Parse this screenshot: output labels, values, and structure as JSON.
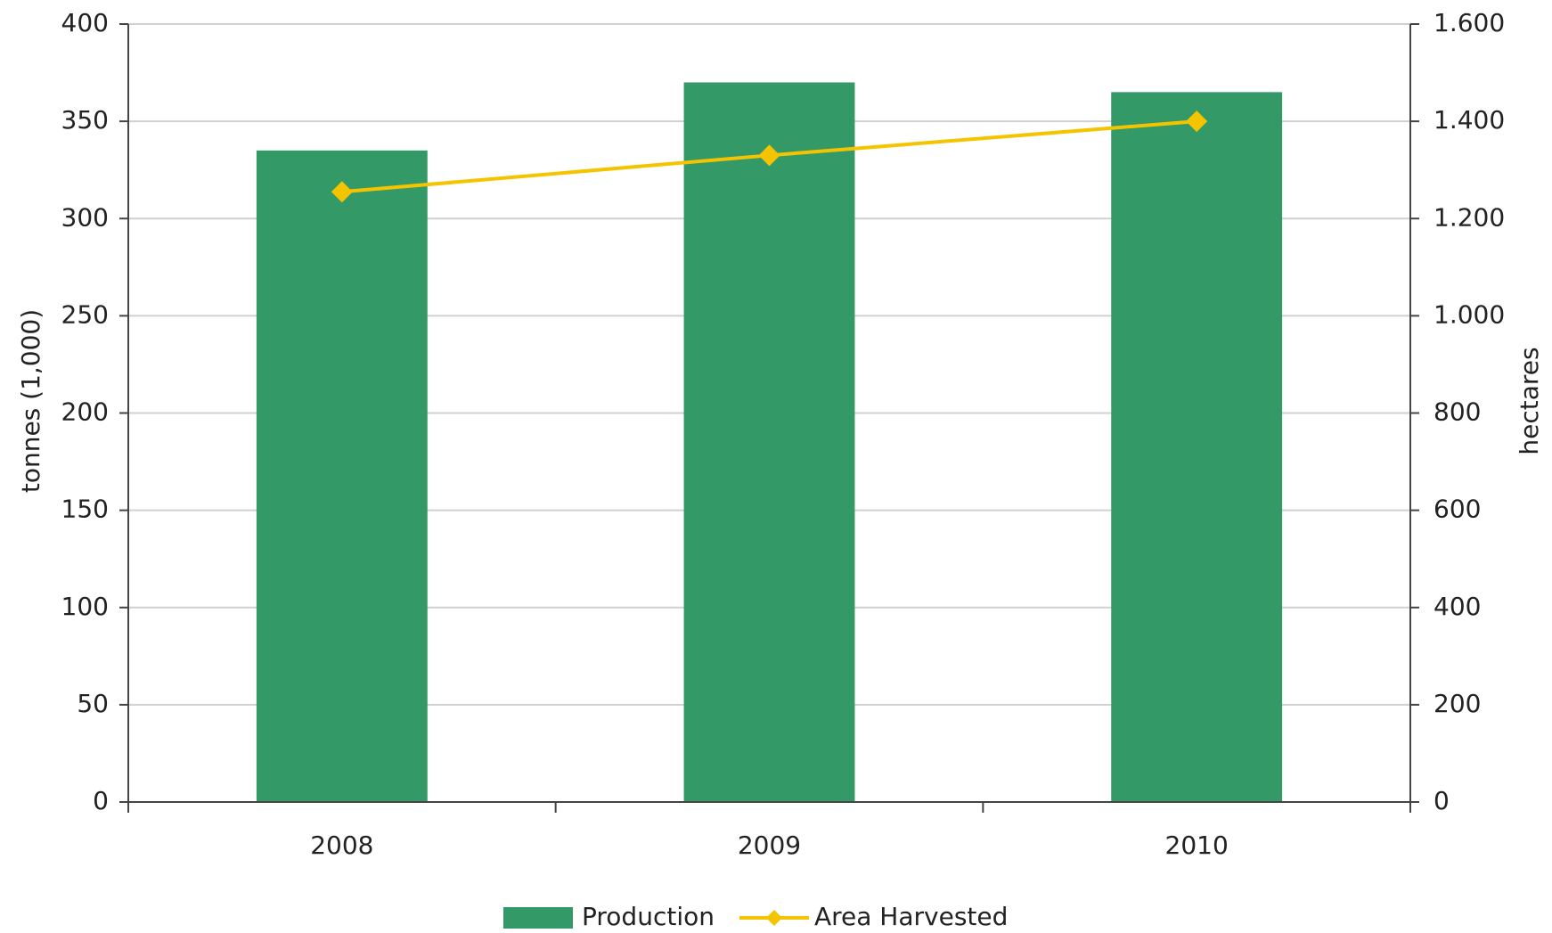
{
  "chart_data": {
    "type": "bar-line",
    "categories": [
      "2008",
      "2009",
      "2010"
    ],
    "series": [
      {
        "name": "Production",
        "type": "bar",
        "color": "#339966",
        "values": [
          335,
          370,
          365
        ]
      },
      {
        "name": "Area Harvested",
        "type": "line",
        "axis": "y2",
        "color": "#f5c400",
        "values": [
          1255,
          1330,
          1400
        ]
      }
    ],
    "ylabel": "tonnes (1,000)",
    "y2label": "hectares",
    "ylim": [
      0,
      400
    ],
    "yticks": [
      0,
      50,
      100,
      150,
      200,
      250,
      300,
      350,
      400
    ],
    "y2lim": [
      0,
      1600
    ],
    "y2ticks": [
      0,
      200,
      400,
      600,
      800,
      {
        "value": 1000,
        "label": "1.000"
      },
      {
        "value": 1200,
        "label": "1.200"
      },
      {
        "value": 1400,
        "label": "1.400"
      },
      {
        "value": 1600,
        "label": "1.600"
      }
    ],
    "grid": true,
    "legend": "bottom"
  }
}
